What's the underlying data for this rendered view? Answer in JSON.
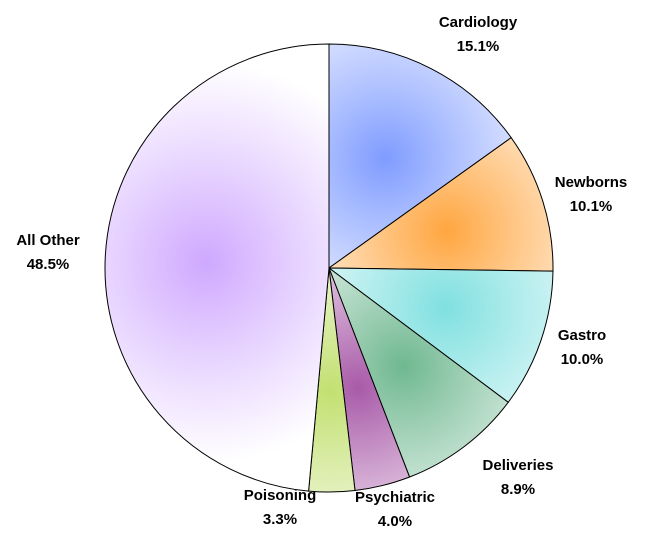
{
  "chart_data": {
    "type": "pie",
    "categories": [
      "Cardiology",
      "Newborns",
      "Gastro",
      "Deliveries",
      "Psychiatric",
      "Poisoning",
      "All Other"
    ],
    "values": [
      15.1,
      10.1,
      10.0,
      8.9,
      4.0,
      3.3,
      48.5
    ],
    "value_labels": [
      "15.1%",
      "10.1%",
      "10.0%",
      "8.9%",
      "4.0%",
      "3.3%",
      "48.5%"
    ],
    "colors": [
      "#7f9cff",
      "#ffa640",
      "#80e0e0",
      "#6fb890",
      "#a85aa8",
      "#c2e070",
      "#cfa8ff"
    ]
  }
}
